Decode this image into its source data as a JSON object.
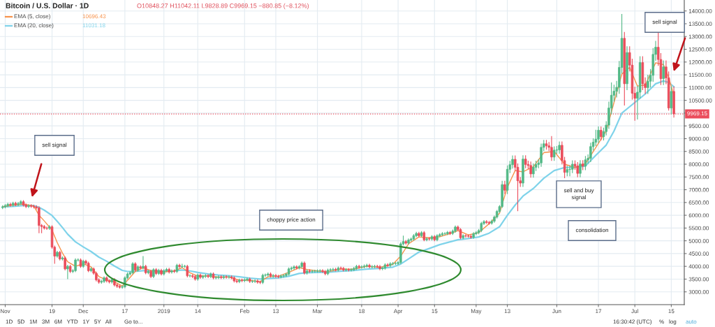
{
  "chart_data": {
    "type": "candlestick",
    "title": "Bitcoin / U.S. Dollar · 1D",
    "subtitle": "O10848.27 H11042.11 L9828.89 C9969.15 −880.85 (−8.12%)",
    "x": [
      "2018-10-31",
      "2018-11-01",
      "2018-11-02",
      "2018-11-03",
      "2018-11-04",
      "2018-11-05",
      "2018-11-06",
      "2018-11-07",
      "2018-11-08",
      "2018-11-09",
      "2018-11-10",
      "2018-11-11",
      "2018-11-12",
      "2018-11-13",
      "2018-11-14",
      "2018-11-15",
      "2018-11-16",
      "2018-11-17",
      "2018-11-18",
      "2018-11-19",
      "2018-11-20",
      "2018-11-21",
      "2018-11-22",
      "2018-11-23",
      "2018-11-24",
      "2018-11-25",
      "2018-11-26",
      "2018-11-27",
      "2018-11-28",
      "2018-11-29",
      "2018-11-30",
      "2018-12-01",
      "2018-12-02",
      "2018-12-03",
      "2018-12-04",
      "2018-12-05",
      "2018-12-06",
      "2018-12-07",
      "2018-12-08",
      "2018-12-09",
      "2018-12-10",
      "2018-12-11",
      "2018-12-12",
      "2018-12-13",
      "2018-12-14",
      "2018-12-15",
      "2018-12-16",
      "2018-12-17",
      "2018-12-18",
      "2018-12-19",
      "2018-12-20",
      "2018-12-21",
      "2018-12-22",
      "2018-12-23",
      "2018-12-24",
      "2018-12-25",
      "2018-12-26",
      "2018-12-27",
      "2018-12-28",
      "2018-12-29",
      "2018-12-30",
      "2018-12-31",
      "2019-01-01",
      "2019-01-02",
      "2019-01-03",
      "2019-01-04",
      "2019-01-05",
      "2019-01-06",
      "2019-01-07",
      "2019-01-08",
      "2019-01-09",
      "2019-01-10",
      "2019-01-11",
      "2019-01-12",
      "2019-01-13",
      "2019-01-14",
      "2019-01-15",
      "2019-01-16",
      "2019-01-17",
      "2019-01-18",
      "2019-01-19",
      "2019-01-20",
      "2019-01-21",
      "2019-01-22",
      "2019-01-23",
      "2019-01-24",
      "2019-01-25",
      "2019-01-26",
      "2019-01-27",
      "2019-01-28",
      "2019-01-29",
      "2019-01-30",
      "2019-01-31",
      "2019-02-01",
      "2019-02-02",
      "2019-02-03",
      "2019-02-04",
      "2019-02-05",
      "2019-02-06",
      "2019-02-07",
      "2019-02-08",
      "2019-02-09",
      "2019-02-10",
      "2019-02-11",
      "2019-02-12",
      "2019-02-13",
      "2019-02-14",
      "2019-02-15",
      "2019-02-16",
      "2019-02-17",
      "2019-02-18",
      "2019-02-19",
      "2019-02-20",
      "2019-02-21",
      "2019-02-22",
      "2019-02-23",
      "2019-02-24",
      "2019-02-25",
      "2019-02-26",
      "2019-02-27",
      "2019-02-28",
      "2019-03-01",
      "2019-03-02",
      "2019-03-03",
      "2019-03-04",
      "2019-03-05",
      "2019-03-06",
      "2019-03-07",
      "2019-03-08",
      "2019-03-09",
      "2019-03-10",
      "2019-03-11",
      "2019-03-12",
      "2019-03-13",
      "2019-03-14",
      "2019-03-15",
      "2019-03-16",
      "2019-03-17",
      "2019-03-18",
      "2019-03-19",
      "2019-03-20",
      "2019-03-21",
      "2019-03-22",
      "2019-03-23",
      "2019-03-24",
      "2019-03-25",
      "2019-03-26",
      "2019-03-27",
      "2019-03-28",
      "2019-03-29",
      "2019-03-30",
      "2019-03-31",
      "2019-04-01",
      "2019-04-02",
      "2019-04-03",
      "2019-04-04",
      "2019-04-05",
      "2019-04-06",
      "2019-04-07",
      "2019-04-08",
      "2019-04-09",
      "2019-04-10",
      "2019-04-11",
      "2019-04-12",
      "2019-04-13",
      "2019-04-14",
      "2019-04-15",
      "2019-04-16",
      "2019-04-17",
      "2019-04-18",
      "2019-04-19",
      "2019-04-20",
      "2019-04-21",
      "2019-04-22",
      "2019-04-23",
      "2019-04-24",
      "2019-04-25",
      "2019-04-26",
      "2019-04-27",
      "2019-04-28",
      "2019-04-29",
      "2019-04-30",
      "2019-05-01",
      "2019-05-02",
      "2019-05-03",
      "2019-05-04",
      "2019-05-05",
      "2019-05-06",
      "2019-05-07",
      "2019-05-08",
      "2019-05-09",
      "2019-05-10",
      "2019-05-11",
      "2019-05-12",
      "2019-05-13",
      "2019-05-14",
      "2019-05-15",
      "2019-05-16",
      "2019-05-17",
      "2019-05-18",
      "2019-05-19",
      "2019-05-20",
      "2019-05-21",
      "2019-05-22",
      "2019-05-23",
      "2019-05-24",
      "2019-05-25",
      "2019-05-26",
      "2019-05-27",
      "2019-05-28",
      "2019-05-29",
      "2019-05-30",
      "2019-05-31",
      "2019-06-01",
      "2019-06-02",
      "2019-06-03",
      "2019-06-04",
      "2019-06-05",
      "2019-06-06",
      "2019-06-07",
      "2019-06-08",
      "2019-06-09",
      "2019-06-10",
      "2019-06-11",
      "2019-06-12",
      "2019-06-13",
      "2019-06-14",
      "2019-06-15",
      "2019-06-16",
      "2019-06-17",
      "2019-06-18",
      "2019-06-19",
      "2019-06-20",
      "2019-06-21",
      "2019-06-22",
      "2019-06-23",
      "2019-06-24",
      "2019-06-25",
      "2019-06-26",
      "2019-06-27",
      "2019-06-28",
      "2019-06-29",
      "2019-06-30",
      "2019-07-01",
      "2019-07-02",
      "2019-07-03",
      "2019-07-04",
      "2019-07-05",
      "2019-07-06",
      "2019-07-07",
      "2019-07-08",
      "2019-07-09",
      "2019-07-10",
      "2019-07-11",
      "2019-07-12",
      "2019-07-13",
      "2019-07-14",
      "2019-07-15",
      "2019-07-16"
    ],
    "ohlc": [
      [
        6300,
        6390,
        6240,
        6330
      ],
      [
        6330,
        6440,
        6270,
        6380
      ],
      [
        6380,
        6490,
        6320,
        6430
      ],
      [
        6430,
        6490,
        6340,
        6400
      ],
      [
        6400,
        6530,
        6340,
        6470
      ],
      [
        6470,
        6530,
        6360,
        6420
      ],
      [
        6420,
        6520,
        6360,
        6460
      ],
      [
        6460,
        6590,
        6400,
        6530
      ],
      [
        6530,
        6590,
        6340,
        6400
      ],
      [
        6400,
        6460,
        6280,
        6340
      ],
      [
        6340,
        6430,
        6280,
        6370
      ],
      [
        6370,
        6430,
        6290,
        6350
      ],
      [
        6350,
        6410,
        6270,
        6330
      ],
      [
        6330,
        6390,
        6230,
        6290
      ],
      [
        6290,
        6350,
        5300,
        5600
      ],
      [
        5600,
        5660,
        5300,
        5560
      ],
      [
        5560,
        5620,
        5440,
        5500
      ],
      [
        5500,
        5560,
        5430,
        5490
      ],
      [
        5490,
        5610,
        5430,
        5550
      ],
      [
        5550,
        5610,
        4690,
        4750
      ],
      [
        4750,
        4810,
        4100,
        4400
      ],
      [
        4400,
        4610,
        4340,
        4550
      ],
      [
        4550,
        4610,
        4230,
        4290
      ],
      [
        4290,
        4390,
        4230,
        4330
      ],
      [
        4330,
        4390,
        3840,
        3900
      ],
      [
        3900,
        4060,
        3500,
        4000
      ],
      [
        4000,
        4060,
        3740,
        3800
      ],
      [
        3800,
        3890,
        3740,
        3830
      ],
      [
        3830,
        4310,
        3770,
        4250
      ],
      [
        4250,
        4310,
        4190,
        4250
      ],
      [
        4250,
        4310,
        3940,
        4000
      ],
      [
        4000,
        4260,
        3940,
        4200
      ],
      [
        4200,
        4260,
        4060,
        4120
      ],
      [
        4120,
        4180,
        3770,
        3830
      ],
      [
        3830,
        3960,
        3770,
        3900
      ],
      [
        3900,
        3960,
        3670,
        3730
      ],
      [
        3730,
        3790,
        3410,
        3470
      ],
      [
        3470,
        3530,
        3320,
        3380
      ],
      [
        3380,
        3470,
        3320,
        3410
      ],
      [
        3410,
        3610,
        3350,
        3550
      ],
      [
        3550,
        3610,
        3370,
        3430
      ],
      [
        3430,
        3490,
        3330,
        3390
      ],
      [
        3390,
        3540,
        3330,
        3480
      ],
      [
        3480,
        3540,
        3210,
        3270
      ],
      [
        3270,
        3330,
        3160,
        3220
      ],
      [
        3220,
        3280,
        3130,
        3180
      ],
      [
        3180,
        3260,
        3120,
        3200
      ],
      [
        3200,
        3610,
        3140,
        3550
      ],
      [
        3550,
        3760,
        3490,
        3700
      ],
      [
        3700,
        3810,
        3640,
        3750
      ],
      [
        3750,
        4160,
        3690,
        4100
      ],
      [
        4100,
        4160,
        3790,
        3850
      ],
      [
        3850,
        4040,
        3790,
        3980
      ],
      [
        3980,
        4040,
        3880,
        3940
      ],
      [
        3940,
        4400,
        3880,
        4000
      ],
      [
        4000,
        4060,
        3690,
        3750
      ],
      [
        3750,
        3860,
        3690,
        3800
      ],
      [
        3800,
        3860,
        3540,
        3600
      ],
      [
        3600,
        3930,
        3540,
        3870
      ],
      [
        3870,
        3930,
        3660,
        3720
      ],
      [
        3720,
        3900,
        3660,
        3840
      ],
      [
        3840,
        3900,
        3640,
        3700
      ],
      [
        3700,
        3890,
        3640,
        3830
      ],
      [
        3830,
        3940,
        3770,
        3880
      ],
      [
        3880,
        3940,
        3720,
        3780
      ],
      [
        3780,
        3880,
        3720,
        3820
      ],
      [
        3820,
        3880,
        3740,
        3800
      ],
      [
        3800,
        4100,
        3740,
        4040
      ],
      [
        4040,
        4100,
        3930,
        3990
      ],
      [
        3990,
        4100,
        3930,
        4000
      ],
      [
        4000,
        4060,
        3940,
        4000
      ],
      [
        4000,
        4060,
        3570,
        3630
      ],
      [
        3630,
        3690,
        3570,
        3630
      ],
      [
        3630,
        3690,
        3540,
        3600
      ],
      [
        3600,
        3660,
        3440,
        3500
      ],
      [
        3500,
        3720,
        3440,
        3660
      ],
      [
        3660,
        3720,
        3510,
        3570
      ],
      [
        3570,
        3670,
        3510,
        3610
      ],
      [
        3610,
        3700,
        3550,
        3640
      ],
      [
        3640,
        3700,
        3540,
        3600
      ],
      [
        3600,
        3760,
        3540,
        3700
      ],
      [
        3700,
        3760,
        3490,
        3550
      ],
      [
        3550,
        3620,
        3490,
        3560
      ],
      [
        3560,
        3650,
        3500,
        3590
      ],
      [
        3590,
        3650,
        3500,
        3560
      ],
      [
        3560,
        3650,
        3500,
        3590
      ],
      [
        3590,
        3650,
        3520,
        3580
      ],
      [
        3580,
        3640,
        3520,
        3580
      ],
      [
        3580,
        3640,
        3490,
        3550
      ],
      [
        3550,
        3610,
        3370,
        3430
      ],
      [
        3430,
        3490,
        3340,
        3400
      ],
      [
        3400,
        3520,
        3340,
        3460
      ],
      [
        3460,
        3520,
        3380,
        3440
      ],
      [
        3440,
        3530,
        3380,
        3470
      ],
      [
        3470,
        3560,
        3410,
        3500
      ],
      [
        3500,
        3560,
        3350,
        3410
      ],
      [
        3410,
        3470,
        3350,
        3410
      ],
      [
        3410,
        3490,
        3350,
        3430
      ],
      [
        3430,
        3490,
        3320,
        3380
      ],
      [
        3380,
        3440,
        3310,
        3370
      ],
      [
        3370,
        3710,
        3310,
        3650
      ],
      [
        3650,
        3720,
        3590,
        3660
      ],
      [
        3660,
        3760,
        3600,
        3700
      ],
      [
        3700,
        3760,
        3560,
        3620
      ],
      [
        3620,
        3700,
        3560,
        3640
      ],
      [
        3640,
        3700,
        3550,
        3610
      ],
      [
        3610,
        3670,
        3530,
        3590
      ],
      [
        3590,
        3680,
        3530,
        3620
      ],
      [
        3620,
        3700,
        3560,
        3640
      ],
      [
        3640,
        3750,
        3580,
        3690
      ],
      [
        3690,
        3960,
        3630,
        3900
      ],
      [
        3900,
        3990,
        3840,
        3930
      ],
      [
        3930,
        4040,
        3870,
        3980
      ],
      [
        3980,
        4040,
        3880,
        3940
      ],
      [
        3940,
        4050,
        3880,
        3990
      ],
      [
        3990,
        4190,
        3930,
        4130
      ],
      [
        4130,
        4190,
        3680,
        3740
      ],
      [
        3740,
        3880,
        3680,
        3820
      ],
      [
        3820,
        3880,
        3740,
        3800
      ],
      [
        3800,
        3870,
        3740,
        3810
      ],
      [
        3810,
        3870,
        3750,
        3810
      ],
      [
        3810,
        3880,
        3750,
        3820
      ],
      [
        3820,
        3890,
        3760,
        3830
      ],
      [
        3830,
        3890,
        3740,
        3800
      ],
      [
        3800,
        3860,
        3650,
        3710
      ],
      [
        3710,
        3910,
        3650,
        3850
      ],
      [
        3850,
        3930,
        3790,
        3870
      ],
      [
        3870,
        3940,
        3810,
        3880
      ],
      [
        3880,
        3940,
        3800,
        3860
      ],
      [
        3860,
        3990,
        3800,
        3930
      ],
      [
        3930,
        3990,
        3860,
        3920
      ],
      [
        3920,
        3980,
        3800,
        3860
      ],
      [
        3860,
        3930,
        3800,
        3870
      ],
      [
        3870,
        3930,
        3800,
        3860
      ],
      [
        3860,
        3930,
        3800,
        3870
      ],
      [
        3870,
        3980,
        3810,
        3920
      ],
      [
        3920,
        4060,
        3860,
        4000
      ],
      [
        4000,
        4060,
        3910,
        3970
      ],
      [
        3970,
        4040,
        3910,
        3980
      ],
      [
        3980,
        4070,
        3920,
        4010
      ],
      [
        4010,
        4100,
        3950,
        4040
      ],
      [
        4040,
        4100,
        3920,
        3980
      ],
      [
        3980,
        4050,
        3920,
        3990
      ],
      [
        3990,
        4060,
        3930,
        4000
      ],
      [
        4000,
        4060,
        3930,
        3990
      ],
      [
        3990,
        4050,
        3850,
        3910
      ],
      [
        3910,
        3990,
        3850,
        3930
      ],
      [
        3930,
        4120,
        3870,
        4060
      ],
      [
        4060,
        4120,
        3970,
        4030
      ],
      [
        4030,
        4160,
        3970,
        4100
      ],
      [
        4100,
        4170,
        4040,
        4110
      ],
      [
        4110,
        4170,
        4050,
        4110
      ],
      [
        4110,
        4210,
        4050,
        4150
      ],
      [
        4150,
        4950,
        4090,
        4880
      ],
      [
        4880,
        5200,
        4820,
        4970
      ],
      [
        4970,
        5030,
        4850,
        4910
      ],
      [
        4910,
        5090,
        4850,
        5030
      ],
      [
        5030,
        5130,
        4970,
        5070
      ],
      [
        5070,
        5260,
        5010,
        5200
      ],
      [
        5200,
        5350,
        5140,
        5290
      ],
      [
        5290,
        5350,
        5140,
        5200
      ],
      [
        5200,
        5380,
        5140,
        5320
      ],
      [
        5320,
        5380,
        4980,
        5040
      ],
      [
        5040,
        5140,
        4980,
        5080
      ],
      [
        5080,
        5140,
        5010,
        5070
      ],
      [
        5070,
        5220,
        5010,
        5160
      ],
      [
        5160,
        5220,
        4980,
        5040
      ],
      [
        5040,
        5260,
        4980,
        5200
      ],
      [
        5200,
        5300,
        5140,
        5240
      ],
      [
        5240,
        5340,
        5180,
        5280
      ],
      [
        5280,
        5340,
        5220,
        5280
      ],
      [
        5280,
        5390,
        5220,
        5330
      ],
      [
        5330,
        5390,
        5230,
        5290
      ],
      [
        5290,
        5440,
        5230,
        5380
      ],
      [
        5380,
        5600,
        5320,
        5540
      ],
      [
        5540,
        5600,
        5380,
        5440
      ],
      [
        5440,
        5500,
        5060,
        5120
      ],
      [
        5120,
        5260,
        5060,
        5200
      ],
      [
        5200,
        5260,
        5130,
        5190
      ],
      [
        5190,
        5250,
        5120,
        5180
      ],
      [
        5180,
        5240,
        5080,
        5140
      ],
      [
        5140,
        5340,
        5080,
        5280
      ],
      [
        5280,
        5380,
        5220,
        5320
      ],
      [
        5320,
        5460,
        5260,
        5400
      ],
      [
        5400,
        5740,
        5340,
        5680
      ],
      [
        5680,
        5810,
        5620,
        5750
      ],
      [
        5750,
        5810,
        5660,
        5720
      ],
      [
        5720,
        5780,
        5630,
        5690
      ],
      [
        5690,
        5830,
        5630,
        5770
      ],
      [
        5770,
        5990,
        5710,
        5930
      ],
      [
        5930,
        6210,
        5870,
        6150
      ],
      [
        6150,
        6400,
        6090,
        6340
      ],
      [
        6340,
        7350,
        6280,
        7200
      ],
      [
        7200,
        7350,
        6830,
        6980
      ],
      [
        6980,
        7950,
        6830,
        7800
      ],
      [
        7800,
        8130,
        7650,
        7980
      ],
      [
        7980,
        8340,
        7830,
        8190
      ],
      [
        8190,
        8340,
        7730,
        7880
      ],
      [
        7880,
        8030,
        6160,
        7350
      ],
      [
        7350,
        7500,
        7110,
        7260
      ],
      [
        7260,
        8350,
        7110,
        8200
      ],
      [
        8200,
        8350,
        7840,
        7990
      ],
      [
        7990,
        8140,
        7800,
        7950
      ],
      [
        7950,
        8100,
        7470,
        7620
      ],
      [
        7620,
        8030,
        7470,
        7880
      ],
      [
        7880,
        8140,
        7730,
        7990
      ],
      [
        7990,
        8200,
        7840,
        8050
      ],
      [
        8050,
        8810,
        7900,
        8660
      ],
      [
        8660,
        8950,
        8510,
        8800
      ],
      [
        8800,
        8950,
        8570,
        8720
      ],
      [
        8720,
        8870,
        8510,
        8660
      ],
      [
        8660,
        9100,
        8130,
        8280
      ],
      [
        8280,
        8700,
        8130,
        8550
      ],
      [
        8550,
        8710,
        8410,
        8560
      ],
      [
        8560,
        8890,
        8410,
        8740
      ],
      [
        8740,
        8890,
        7990,
        8140
      ],
      [
        8140,
        8290,
        7450,
        7680
      ],
      [
        7680,
        7940,
        7530,
        7790
      ],
      [
        7790,
        7950,
        7530,
        7800
      ],
      [
        7800,
        8150,
        7650,
        8000
      ],
      [
        8000,
        8150,
        7780,
        7930
      ],
      [
        7930,
        8080,
        7490,
        7640
      ],
      [
        7640,
        8160,
        7490,
        8010
      ],
      [
        8010,
        8160,
        7770,
        7920
      ],
      [
        7920,
        8320,
        7770,
        8170
      ],
      [
        8170,
        8380,
        8020,
        8230
      ],
      [
        8230,
        8840,
        8080,
        8690
      ],
      [
        8690,
        9010,
        8540,
        8860
      ],
      [
        8860,
        9350,
        8710,
        8980
      ],
      [
        8980,
        9480,
        8830,
        9330
      ],
      [
        9330,
        9480,
        8930,
        9080
      ],
      [
        9080,
        9430,
        8930,
        9280
      ],
      [
        9280,
        9680,
        9130,
        9530
      ],
      [
        9530,
        10450,
        9380,
        10200
      ],
      [
        10200,
        11200,
        9950,
        10700
      ],
      [
        10700,
        11110,
        10450,
        10860
      ],
      [
        10860,
        11260,
        10610,
        11010
      ],
      [
        11010,
        12040,
        10760,
        11790
      ],
      [
        11790,
        13880,
        11540,
        12930
      ],
      [
        12930,
        13180,
        10300,
        11150
      ],
      [
        11150,
        12620,
        10900,
        12370
      ],
      [
        12370,
        12620,
        11630,
        11880
      ],
      [
        11880,
        12130,
        10530,
        10780
      ],
      [
        10780,
        11030,
        9700,
        10580
      ],
      [
        10580,
        11070,
        9750,
        10820
      ],
      [
        10820,
        12230,
        10570,
        11980
      ],
      [
        11980,
        12230,
        10900,
        11150
      ],
      [
        11150,
        11400,
        10750,
        11000
      ],
      [
        11000,
        11500,
        10750,
        11250
      ],
      [
        11250,
        11730,
        11000,
        11480
      ],
      [
        11480,
        12550,
        11230,
        12300
      ],
      [
        12300,
        12830,
        12050,
        12580
      ],
      [
        12580,
        13200,
        11850,
        12100
      ],
      [
        12100,
        12350,
        11100,
        11350
      ],
      [
        11350,
        12060,
        11100,
        11810
      ],
      [
        11810,
        12060,
        11130,
        11380
      ],
      [
        11380,
        11630,
        10100,
        10200
      ],
      [
        10200,
        11050,
        9950,
        10848.27
      ],
      [
        10848.27,
        11042.11,
        9828.89,
        9969.15
      ]
    ],
    "colors": [
      "#53b987",
      "#53b987",
      "#53b987",
      "#eb4d5c",
      "#53b987",
      "#eb4d5c",
      "#53b987",
      "#53b987",
      "#eb4d5c",
      "#eb4d5c",
      "#53b987",
      "#eb4d5c",
      "#eb4d5c",
      "#eb4d5c",
      "#eb4d5c",
      "#eb4d5c",
      "#eb4d5c",
      "#eb4d5c",
      "#53b987",
      "#eb4d5c",
      "#eb4d5c",
      "#53b987",
      "#eb4d5c",
      "#53b987",
      "#eb4d5c",
      "#53b987",
      "#eb4d5c",
      "#53b987",
      "#53b987",
      "#53b987",
      "#eb4d5c",
      "#53b987",
      "#eb4d5c",
      "#eb4d5c",
      "#53b987",
      "#eb4d5c",
      "#eb4d5c",
      "#eb4d5c",
      "#53b987",
      "#53b987",
      "#eb4d5c",
      "#eb4d5c",
      "#53b987",
      "#eb4d5c",
      "#eb4d5c",
      "#eb4d5c",
      "#53b987",
      "#53b987",
      "#53b987",
      "#53b987",
      "#53b987",
      "#eb4d5c",
      "#53b987",
      "#eb4d5c",
      "#53b987",
      "#eb4d5c",
      "#53b987",
      "#eb4d5c",
      "#53b987",
      "#eb4d5c",
      "#53b987",
      "#eb4d5c",
      "#53b987",
      "#53b987",
      "#eb4d5c",
      "#53b987",
      "#eb4d5c",
      "#53b987",
      "#eb4d5c",
      "#53b987",
      "#53b987",
      "#eb4d5c",
      "#53b987",
      "#eb4d5c",
      "#eb4d5c",
      "#53b987",
      "#eb4d5c",
      "#53b987",
      "#53b987",
      "#eb4d5c",
      "#53b987",
      "#eb4d5c",
      "#53b987",
      "#53b987",
      "#eb4d5c",
      "#53b987",
      "#eb4d5c",
      "#53b987",
      "#eb4d5c",
      "#eb4d5c",
      "#eb4d5c",
      "#53b987",
      "#eb4d5c",
      "#53b987",
      "#53b987",
      "#eb4d5c",
      "#53b987",
      "#53b987",
      "#eb4d5c",
      "#eb4d5c",
      "#53b987",
      "#53b987",
      "#53b987",
      "#eb4d5c",
      "#53b987",
      "#eb4d5c",
      "#eb4d5c",
      "#53b987",
      "#53b987",
      "#53b987",
      "#53b987",
      "#53b987",
      "#53b987",
      "#eb4d5c",
      "#53b987",
      "#53b987",
      "#eb4d5c",
      "#53b987",
      "#eb4d5c",
      "#53b987",
      "#53b987",
      "#53b987",
      "#53b987",
      "#eb4d5c",
      "#eb4d5c",
      "#53b987",
      "#53b987",
      "#53b987",
      "#eb4d5c",
      "#53b987",
      "#eb4d5c",
      "#eb4d5c",
      "#53b987",
      "#eb4d5c",
      "#53b987",
      "#53b987",
      "#53b987",
      "#eb4d5c",
      "#53b987",
      "#53b987",
      "#53b987",
      "#eb4d5c",
      "#53b987",
      "#53b987",
      "#eb4d5c",
      "#eb4d5c",
      "#53b987",
      "#53b987",
      "#eb4d5c",
      "#53b987",
      "#53b987",
      "#53b987",
      "#53b987",
      "#53b987",
      "#53b987",
      "#eb4d5c",
      "#53b987",
      "#53b987",
      "#53b987",
      "#53b987",
      "#eb4d5c",
      "#53b987",
      "#eb4d5c",
      "#53b987",
      "#eb4d5c",
      "#53b987",
      "#eb4d5c",
      "#53b987",
      "#53b987",
      "#53b987",
      "#53b987",
      "#53b987",
      "#eb4d5c",
      "#53b987",
      "#53b987",
      "#eb4d5c",
      "#eb4d5c",
      "#53b987",
      "#eb4d5c",
      "#eb4d5c",
      "#eb4d5c",
      "#53b987",
      "#53b987",
      "#53b987",
      "#53b987",
      "#53b987",
      "#eb4d5c",
      "#eb4d5c",
      "#53b987",
      "#53b987",
      "#53b987",
      "#53b987",
      "#53b987",
      "#eb4d5c",
      "#53b987",
      "#53b987",
      "#53b987",
      "#eb4d5c",
      "#eb4d5c",
      "#eb4d5c",
      "#53b987",
      "#eb4d5c",
      "#eb4d5c",
      "#eb4d5c",
      "#53b987",
      "#53b987",
      "#53b987",
      "#53b987",
      "#53b987",
      "#eb4d5c",
      "#eb4d5c",
      "#eb4d5c",
      "#53b987",
      "#53b987",
      "#53b987",
      "#eb4d5c",
      "#eb4d5c",
      "#53b987",
      "#53b987",
      "#53b987",
      "#eb4d5c",
      "#eb4d5c",
      "#53b987",
      "#eb4d5c",
      "#53b987",
      "#53b987",
      "#53b987",
      "#53b987",
      "#53b987",
      "#53b987",
      "#eb4d5c",
      "#53b987",
      "#53b987",
      "#53b987",
      "#53b987",
      "#53b987",
      "#53b987",
      "#53b987",
      "#53b987",
      "#eb4d5c",
      "#53b987",
      "#eb4d5c",
      "#eb4d5c",
      "#eb4d5c",
      "#53b987",
      "#53b987",
      "#eb4d5c",
      "#eb4d5c",
      "#53b987",
      "#53b987",
      "#53b987",
      "#53b987",
      "#eb4d5c",
      "#eb4d5c",
      "#53b987",
      "#eb4d5c",
      "#eb4d5c",
      "#53b987",
      "#eb4d5c"
    ],
    "series": [
      {
        "type": "line",
        "name": "EMA (5, close)",
        "color": "#f7934c",
        "x": [
          "2018-10-31",
          "2018-11-04",
          "2018-11-08",
          "2018-11-12",
          "2018-11-14",
          "2018-11-16",
          "2018-11-19",
          "2018-11-21",
          "2018-11-23",
          "2018-11-25",
          "2018-11-28",
          "2018-12-01",
          "2018-12-04",
          "2018-12-07",
          "2018-12-10",
          "2018-12-13",
          "2018-12-16",
          "2018-12-18",
          "2018-12-21",
          "2018-12-24",
          "2018-12-28",
          "2019-01-01",
          "2019-01-05",
          "2019-01-08",
          "2019-01-11",
          "2019-01-14",
          "2019-01-18",
          "2019-01-22",
          "2019-01-26",
          "2019-01-30",
          "2019-02-03",
          "2019-02-07",
          "2019-02-10",
          "2019-02-14",
          "2019-02-18",
          "2019-02-22",
          "2019-02-25",
          "2019-03-01",
          "2019-03-05",
          "2019-03-10",
          "2019-03-15",
          "2019-03-20",
          "2019-03-25",
          "2019-03-30",
          "2019-04-02",
          "2019-04-05",
          "2019-04-09",
          "2019-04-13",
          "2019-04-17",
          "2019-04-21",
          "2019-04-24",
          "2019-04-28",
          "2019-05-02",
          "2019-05-06",
          "2019-05-10",
          "2019-05-13",
          "2019-05-16",
          "2019-05-19",
          "2019-05-23",
          "2019-05-27",
          "2019-05-31",
          "2019-06-04",
          "2019-06-08",
          "2019-06-12",
          "2019-06-16",
          "2019-06-20",
          "2019-06-23",
          "2019-06-26",
          "2019-06-29",
          "2019-07-02",
          "2019-07-05",
          "2019-07-09",
          "2019-07-12",
          "2019-07-14",
          "2019-07-16"
        ],
        "values": [
          6330,
          6400,
          6440,
          6360,
          6000,
          5780,
          5420,
          4930,
          4520,
          4180,
          4000,
          4100,
          3980,
          3600,
          3470,
          3390,
          3230,
          3450,
          3800,
          3940,
          3800,
          3780,
          3820,
          3950,
          3750,
          3620,
          3620,
          3580,
          3580,
          3460,
          3450,
          3400,
          3590,
          3620,
          3760,
          3950,
          3880,
          3820,
          3790,
          3890,
          3890,
          4000,
          3960,
          4080,
          4400,
          4880,
          5150,
          5120,
          5160,
          5280,
          5400,
          5230,
          5320,
          5670,
          6080,
          7100,
          7750,
          7700,
          7900,
          8450,
          8500,
          8000,
          7870,
          8020,
          8650,
          9300,
          10420,
          11530,
          11790,
          11060,
          11100,
          11970,
          11900,
          11400,
          10696.43
        ]
      },
      {
        "type": "line",
        "name": "EMA (20, close)",
        "color": "#7fd3ea",
        "x": [
          "2018-10-31",
          "2018-11-04",
          "2018-11-08",
          "2018-11-12",
          "2018-11-14",
          "2018-11-16",
          "2018-11-19",
          "2018-11-21",
          "2018-11-23",
          "2018-11-25",
          "2018-11-28",
          "2018-12-01",
          "2018-12-04",
          "2018-12-07",
          "2018-12-10",
          "2018-12-13",
          "2018-12-16",
          "2018-12-18",
          "2018-12-21",
          "2018-12-24",
          "2018-12-28",
          "2019-01-01",
          "2019-01-05",
          "2019-01-08",
          "2019-01-11",
          "2019-01-14",
          "2019-01-18",
          "2019-01-22",
          "2019-01-26",
          "2019-01-30",
          "2019-02-03",
          "2019-02-07",
          "2019-02-10",
          "2019-02-14",
          "2019-02-18",
          "2019-02-22",
          "2019-02-25",
          "2019-03-01",
          "2019-03-05",
          "2019-03-10",
          "2019-03-15",
          "2019-03-20",
          "2019-03-25",
          "2019-03-30",
          "2019-04-02",
          "2019-04-05",
          "2019-04-09",
          "2019-04-13",
          "2019-04-17",
          "2019-04-21",
          "2019-04-24",
          "2019-04-28",
          "2019-05-02",
          "2019-05-06",
          "2019-05-10",
          "2019-05-13",
          "2019-05-16",
          "2019-05-19",
          "2019-05-23",
          "2019-05-27",
          "2019-05-31",
          "2019-06-04",
          "2019-06-08",
          "2019-06-12",
          "2019-06-16",
          "2019-06-20",
          "2019-06-23",
          "2019-06-26",
          "2019-06-29",
          "2019-07-02",
          "2019-07-05",
          "2019-07-09",
          "2019-07-12",
          "2019-07-14",
          "2019-07-16"
        ],
        "values": [
          6330,
          6350,
          6380,
          6380,
          6310,
          6200,
          5990,
          5760,
          5520,
          5260,
          4960,
          4760,
          4580,
          4360,
          4200,
          4010,
          3840,
          3800,
          3800,
          3830,
          3830,
          3810,
          3820,
          3860,
          3820,
          3760,
          3700,
          3660,
          3630,
          3590,
          3540,
          3500,
          3520,
          3550,
          3610,
          3720,
          3750,
          3760,
          3770,
          3810,
          3840,
          3890,
          3920,
          3970,
          4090,
          4290,
          4560,
          4700,
          4850,
          4960,
          5040,
          5090,
          5150,
          5300,
          5550,
          6000,
          6400,
          6750,
          7050,
          7450,
          7750,
          7870,
          7880,
          7930,
          8350,
          8750,
          9300,
          10000,
          10250,
          10500,
          10750,
          11150,
          11260,
          11200,
          11031.18
        ]
      }
    ],
    "xlim": [
      "2018-10-30",
      "2019-07-20"
    ],
    "xticks": [
      {
        "value": "2018-11-01",
        "label": "Nov"
      },
      {
        "value": "2018-11-19",
        "label": "19"
      },
      {
        "value": "2018-12-01",
        "label": "Dec"
      },
      {
        "value": "2018-12-17",
        "label": "17"
      },
      {
        "value": "2019-01-01",
        "label": "2019"
      },
      {
        "value": "2019-01-14",
        "label": "14"
      },
      {
        "value": "2019-02-01",
        "label": "Feb"
      },
      {
        "value": "2019-02-13",
        "label": "13"
      },
      {
        "value": "2019-03-01",
        "label": "Mar"
      },
      {
        "value": "2019-03-18",
        "label": "18"
      },
      {
        "value": "2019-04-01",
        "label": "Apr"
      },
      {
        "value": "2019-04-15",
        "label": "15"
      },
      {
        "value": "2019-05-01",
        "label": "May"
      },
      {
        "value": "2019-05-13",
        "label": "13"
      },
      {
        "value": "2019-06-01",
        "label": "Jun"
      },
      {
        "value": "2019-06-17",
        "label": "17"
      },
      {
        "value": "2019-07-01",
        "label": "Jul"
      },
      {
        "value": "2019-07-15",
        "label": "15"
      }
    ],
    "ylim": [
      2500,
      14430
    ],
    "yticks": [
      {
        "value": 3000,
        "label": "3000.00"
      },
      {
        "value": 3500,
        "label": "3500.00"
      },
      {
        "value": 4000,
        "label": "4000.00"
      },
      {
        "value": 4500,
        "label": "4500.00"
      },
      {
        "value": 5000,
        "label": "5000.00"
      },
      {
        "value": 5500,
        "label": "5500.00"
      },
      {
        "value": 6000,
        "label": "6000.00"
      },
      {
        "value": 6500,
        "label": "6500.00"
      },
      {
        "value": 7000,
        "label": "7000.00"
      },
      {
        "value": 7500,
        "label": "7500.00"
      },
      {
        "value": 8000,
        "label": "8000.00"
      },
      {
        "value": 8500,
        "label": "8500.00"
      },
      {
        "value": 9000,
        "label": "9000.00"
      },
      {
        "value": 9500,
        "label": "9500.00"
      },
      {
        "value": 10000,
        "label": null
      },
      {
        "value": 10500,
        "label": "10500.00"
      },
      {
        "value": 11000,
        "label": "11000.00"
      },
      {
        "value": 11500,
        "label": "11500.00"
      },
      {
        "value": 12000,
        "label": "12000.00"
      },
      {
        "value": 12500,
        "label": "12500.00"
      },
      {
        "value": 13000,
        "label": "13000.00"
      },
      {
        "value": 13500,
        "label": "13500.00"
      },
      {
        "value": 14000,
        "label": "14000.00"
      }
    ],
    "ref_lines": [
      {
        "axis": "y",
        "value": 9969.15,
        "label": "9969.15",
        "color": "#eb4d5c",
        "line_style": "dotted"
      }
    ],
    "annotations": [
      "sell signal",
      "choppy price action",
      "sell and buy\nsignal",
      "consolidation",
      "sell signal",
      "10696.43",
      "11031.18",
      "1D   5D   1M   3M   6M   YTD   1Y   5Y   All",
      "Go to...",
      "16:30:42 (UTC)",
      "%",
      "log",
      "auto"
    ],
    "grid": true,
    "legend": "top left"
  }
}
